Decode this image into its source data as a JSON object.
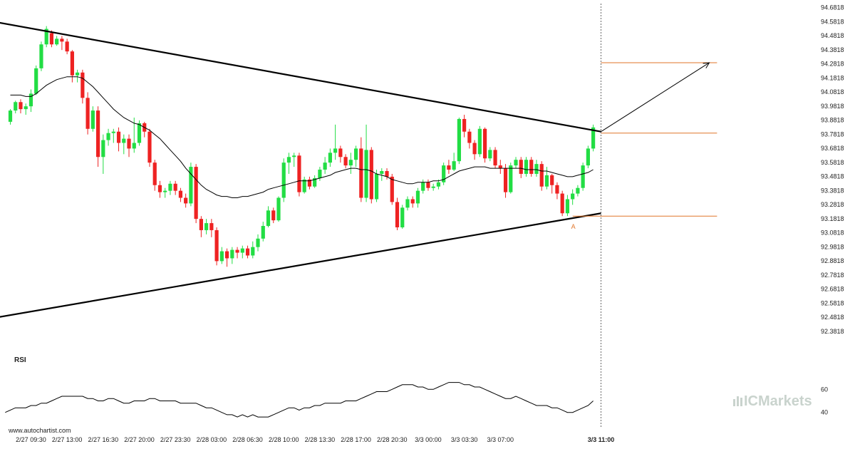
{
  "watermark": "www.autochartist.com",
  "brand": {
    "prefix": "IC",
    "name": "Markets",
    "color": "#c9d3cd"
  },
  "colors": {
    "up": "#22dd44",
    "down": "#ee2222",
    "level": "#e0762a",
    "trend": "#000000",
    "ma": "#000000"
  },
  "chart_data": {
    "type": "candlestick",
    "title": "",
    "y_ticks": [
      "94.6818",
      "94.5818",
      "94.4818",
      "94.3818",
      "94.2818",
      "94.1818",
      "94.0818",
      "93.9818",
      "93.8818",
      "93.7818",
      "93.6818",
      "93.5818",
      "93.4818",
      "93.3818",
      "93.2818",
      "93.1818",
      "93.0818",
      "92.9818",
      "92.8818",
      "92.7818",
      "92.6818",
      "92.5818",
      "92.4818",
      "92.3818"
    ],
    "ylim": [
      92.33,
      94.7
    ],
    "x_ticks": [
      "2/27 09:30",
      "2/27 13:00",
      "2/27 16:30",
      "2/27 20:00",
      "2/27 23:30",
      "2/28 03:00",
      "2/28 06:30",
      "2/28 10:00",
      "2/28 13:30",
      "2/28 17:00",
      "2/28 20:30",
      "3/3 00:00",
      "3/3 03:30",
      "3/3 07:00",
      "3/3 11:00"
    ],
    "x_tick_start_bar": 4,
    "x_tick_step_bars": 7,
    "candles": [
      [
        93.87,
        93.95,
        93.85,
        93.96
      ],
      [
        93.95,
        94.01,
        93.93,
        94.02
      ],
      [
        94.01,
        93.96,
        93.93,
        94.03
      ],
      [
        93.96,
        93.98,
        93.92,
        94.0
      ],
      [
        93.98,
        94.07,
        93.94,
        94.1
      ],
      [
        94.07,
        94.25,
        94.06,
        94.27
      ],
      [
        94.25,
        94.42,
        94.23,
        94.44
      ],
      [
        94.42,
        94.53,
        94.4,
        94.55
      ],
      [
        94.5,
        94.42,
        94.4,
        94.52
      ],
      [
        94.42,
        94.46,
        94.41,
        94.48
      ],
      [
        94.46,
        94.44,
        94.38,
        94.48
      ],
      [
        94.44,
        94.37,
        94.35,
        94.46
      ],
      [
        94.37,
        94.2,
        94.15,
        94.38
      ],
      [
        94.2,
        94.22,
        94.15,
        94.24
      ],
      [
        94.22,
        94.04,
        94.0,
        94.24
      ],
      [
        94.04,
        93.82,
        93.78,
        94.08
      ],
      [
        93.82,
        93.95,
        93.8,
        93.98
      ],
      [
        93.95,
        93.62,
        93.55,
        93.98
      ],
      [
        93.62,
        93.74,
        93.5,
        93.78
      ],
      [
        93.74,
        93.79,
        93.7,
        93.82
      ],
      [
        93.79,
        93.8,
        93.72,
        93.82
      ],
      [
        93.8,
        93.72,
        93.66,
        93.83
      ],
      [
        93.72,
        93.75,
        93.64,
        93.78
      ],
      [
        93.75,
        93.68,
        93.62,
        93.78
      ],
      [
        93.68,
        93.72,
        93.65,
        93.9
      ],
      [
        93.72,
        93.86,
        93.7,
        93.88
      ],
      [
        93.86,
        93.8,
        93.76,
        93.87
      ],
      [
        93.8,
        93.58,
        93.55,
        93.82
      ],
      [
        93.58,
        93.42,
        93.38,
        93.6
      ],
      [
        93.42,
        93.37,
        93.33,
        93.45
      ],
      [
        93.37,
        93.38,
        93.33,
        93.4
      ],
      [
        93.38,
        93.43,
        93.35,
        93.45
      ],
      [
        93.43,
        93.38,
        93.35,
        93.45
      ],
      [
        93.38,
        93.33,
        93.3,
        93.4
      ],
      [
        93.33,
        93.29,
        93.26,
        93.36
      ],
      [
        93.29,
        93.55,
        93.27,
        93.58
      ],
      [
        93.55,
        93.18,
        93.15,
        93.57
      ],
      [
        93.18,
        93.1,
        93.05,
        93.2
      ],
      [
        93.1,
        93.15,
        93.07,
        93.18
      ],
      [
        93.15,
        93.1,
        93.05,
        93.18
      ],
      [
        93.1,
        92.88,
        92.85,
        93.12
      ],
      [
        92.88,
        92.95,
        92.86,
        92.98
      ],
      [
        92.95,
        92.9,
        92.84,
        92.97
      ],
      [
        92.9,
        92.96,
        92.86,
        92.98
      ],
      [
        92.96,
        92.94,
        92.9,
        92.98
      ],
      [
        92.94,
        92.97,
        92.9,
        92.99
      ],
      [
        92.97,
        92.92,
        92.9,
        92.99
      ],
      [
        92.92,
        92.98,
        92.9,
        93.02
      ],
      [
        92.98,
        93.04,
        92.95,
        93.07
      ],
      [
        93.04,
        93.13,
        93.02,
        93.16
      ],
      [
        93.13,
        93.24,
        93.12,
        93.27
      ],
      [
        93.24,
        93.17,
        93.15,
        93.26
      ],
      [
        93.17,
        93.33,
        93.16,
        93.34
      ],
      [
        93.33,
        93.58,
        93.3,
        93.61
      ],
      [
        93.58,
        93.62,
        93.5,
        93.65
      ],
      [
        93.62,
        93.63,
        93.55,
        93.65
      ],
      [
        93.63,
        93.37,
        93.34,
        93.65
      ],
      [
        93.37,
        93.46,
        93.36,
        93.48
      ],
      [
        93.46,
        93.41,
        93.39,
        93.48
      ],
      [
        93.41,
        93.47,
        93.4,
        93.49
      ],
      [
        93.47,
        93.53,
        93.45,
        93.55
      ],
      [
        93.53,
        93.58,
        93.5,
        93.62
      ],
      [
        93.58,
        93.65,
        93.55,
        93.68
      ],
      [
        93.65,
        93.68,
        93.6,
        93.85
      ],
      [
        93.68,
        93.62,
        93.58,
        93.7
      ],
      [
        93.62,
        93.56,
        93.54,
        93.64
      ],
      [
        93.56,
        93.6,
        93.5,
        93.65
      ],
      [
        93.6,
        93.68,
        93.55,
        93.7
      ],
      [
        93.68,
        93.33,
        93.3,
        93.76
      ],
      [
        93.33,
        93.67,
        93.3,
        93.85
      ],
      [
        93.67,
        93.32,
        93.29,
        93.69
      ],
      [
        93.32,
        93.5,
        93.3,
        93.53
      ],
      [
        93.5,
        93.52,
        93.45,
        93.54
      ],
      [
        93.52,
        93.48,
        93.46,
        93.54
      ],
      [
        93.48,
        93.3,
        93.28,
        93.5
      ],
      [
        93.3,
        93.12,
        93.1,
        93.33
      ],
      [
        93.12,
        93.26,
        93.11,
        93.28
      ],
      [
        93.26,
        93.32,
        93.24,
        93.34
      ],
      [
        93.32,
        93.29,
        93.26,
        93.34
      ],
      [
        93.29,
        93.38,
        93.26,
        93.4
      ],
      [
        93.38,
        93.44,
        93.36,
        93.46
      ],
      [
        93.44,
        93.4,
        93.38,
        93.46
      ],
      [
        93.4,
        93.41,
        93.38,
        93.43
      ],
      [
        93.41,
        93.44,
        93.39,
        93.46
      ],
      [
        93.44,
        93.56,
        93.42,
        93.58
      ],
      [
        93.56,
        93.53,
        93.5,
        93.6
      ],
      [
        93.53,
        93.59,
        93.52,
        93.65
      ],
      [
        93.59,
        93.89,
        93.57,
        93.9
      ],
      [
        93.89,
        93.8,
        93.76,
        93.92
      ],
      [
        93.8,
        93.72,
        93.68,
        93.82
      ],
      [
        93.72,
        93.64,
        93.6,
        93.74
      ],
      [
        93.64,
        93.82,
        93.62,
        93.84
      ],
      [
        93.82,
        93.61,
        93.58,
        93.83
      ],
      [
        93.61,
        93.67,
        93.59,
        93.69
      ],
      [
        93.67,
        93.56,
        93.54,
        93.69
      ],
      [
        93.56,
        93.54,
        93.5,
        93.6
      ],
      [
        93.54,
        93.37,
        93.33,
        93.57
      ],
      [
        93.37,
        93.56,
        93.36,
        93.58
      ],
      [
        93.56,
        93.6,
        93.54,
        93.62
      ],
      [
        93.6,
        93.5,
        93.47,
        93.62
      ],
      [
        93.5,
        93.6,
        93.48,
        93.62
      ],
      [
        93.6,
        93.5,
        93.48,
        93.62
      ],
      [
        93.5,
        93.57,
        93.48,
        93.6
      ],
      [
        93.57,
        93.41,
        93.38,
        93.59
      ],
      [
        93.41,
        93.49,
        93.39,
        93.55
      ],
      [
        93.49,
        93.42,
        93.36,
        93.5
      ],
      [
        93.42,
        93.36,
        93.32,
        93.44
      ],
      [
        93.36,
        93.22,
        93.2,
        93.38
      ],
      [
        93.22,
        93.32,
        93.2,
        93.35
      ],
      [
        93.32,
        93.36,
        93.28,
        93.39
      ],
      [
        93.36,
        93.4,
        93.34,
        93.42
      ],
      [
        93.4,
        93.56,
        93.38,
        93.58
      ],
      [
        93.56,
        93.68,
        93.54,
        93.7
      ],
      [
        93.68,
        93.83,
        93.66,
        93.85
      ]
    ],
    "moving_average": {
      "start_bar": 0,
      "values": [
        94.06,
        94.06,
        94.06,
        94.05,
        94.05,
        94.07,
        94.1,
        94.13,
        94.15,
        94.17,
        94.18,
        94.19,
        94.19,
        94.19,
        94.18,
        94.15,
        94.12,
        94.08,
        94.04,
        94.0,
        93.96,
        93.93,
        93.9,
        93.88,
        93.86,
        93.85,
        93.83,
        93.81,
        93.78,
        93.75,
        93.71,
        93.67,
        93.63,
        93.59,
        93.54,
        93.5,
        93.46,
        93.42,
        93.39,
        93.37,
        93.35,
        93.34,
        93.34,
        93.33,
        93.33,
        93.34,
        93.34,
        93.35,
        93.36,
        93.37,
        93.39,
        93.4,
        93.41,
        93.42,
        93.43,
        93.44,
        93.45,
        93.45,
        93.45,
        93.46,
        93.47,
        93.48,
        93.49,
        93.51,
        93.52,
        93.53,
        93.54,
        93.54,
        93.53,
        93.53,
        93.52,
        93.5,
        93.49,
        93.48,
        93.46,
        93.45,
        93.44,
        93.43,
        93.43,
        93.44,
        93.44,
        93.44,
        93.45,
        93.45,
        93.46,
        93.48,
        93.5,
        93.52,
        93.53,
        93.54,
        93.55,
        93.55,
        93.55,
        93.54,
        93.54,
        93.54,
        93.54,
        93.54,
        93.54,
        93.54,
        93.53,
        93.53,
        93.53,
        93.52,
        93.52,
        93.51,
        93.5,
        93.49,
        93.48,
        93.48,
        93.49,
        93.5,
        93.51,
        93.53
      ]
    },
    "trendlines": [
      {
        "from": {
          "bar": -10.5,
          "y": 94.63
        },
        "to": {
          "bar": 114.5,
          "y": 93.8
        }
      },
      {
        "from": {
          "bar": -10.5,
          "y": 92.43
        },
        "to": {
          "bar": 114.5,
          "y": 93.22
        }
      }
    ],
    "levels": [
      {
        "y": 94.29,
        "from_bar": 114.5,
        "to_bar": 137
      },
      {
        "y": 93.79,
        "from_bar": 114.5,
        "to_bar": 137
      },
      {
        "y": 93.2,
        "from_bar": 109,
        "to_bar": 137
      }
    ],
    "forecast_arrow": {
      "from": {
        "bar": 114.5,
        "y": 93.8
      },
      "to": {
        "bar": 135.5,
        "y": 94.29
      }
    },
    "current_bar": 114.5,
    "marker": {
      "label": "A",
      "bar": 109,
      "y": 93.11
    },
    "rsi": {
      "label": "RSI",
      "y_ticks": [
        "60",
        "40"
      ],
      "ylim": [
        33,
        75
      ],
      "values": [
        40,
        42,
        44,
        44,
        44,
        46,
        46,
        48,
        48,
        50,
        52,
        54,
        54,
        54,
        54,
        54,
        52,
        52,
        50,
        50,
        52,
        52,
        50,
        48,
        48,
        50,
        50,
        50,
        52,
        52,
        50,
        50,
        50,
        50,
        48,
        48,
        48,
        48,
        46,
        44,
        44,
        42,
        40,
        38,
        38,
        36,
        38,
        36,
        38,
        36,
        36,
        36,
        38,
        40,
        42,
        44,
        44,
        42,
        44,
        44,
        46,
        46,
        48,
        48,
        48,
        48,
        50,
        50,
        50,
        52,
        54,
        56,
        58,
        58,
        58,
        60,
        62,
        64,
        64,
        64,
        62,
        62,
        60,
        60,
        62,
        64,
        66,
        66,
        66,
        64,
        64,
        62,
        62,
        60,
        58,
        56,
        54,
        52,
        52,
        54,
        52,
        50,
        48,
        46,
        46,
        46,
        44,
        44,
        42,
        40,
        40,
        42,
        44,
        46,
        50
      ]
    }
  }
}
